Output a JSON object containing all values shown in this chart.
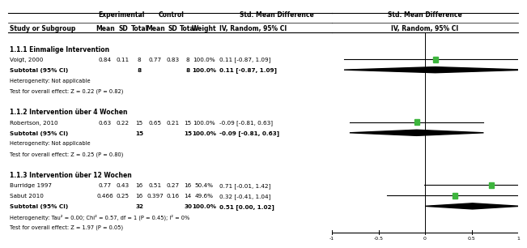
{
  "sections": [
    {
      "heading": "1.1.1 Einmalige Intervention",
      "studies": [
        {
          "name": "Voigt, 2000",
          "exp_mean": "0.84",
          "exp_sd": "0.11",
          "exp_n": "8",
          "ctrl_mean": "0.77",
          "ctrl_sd": "0.83",
          "ctrl_n": "8",
          "weight": "100.0%",
          "smd": 0.11,
          "ci_lo": -0.87,
          "ci_hi": 1.09,
          "label": "0.11 [-0.87, 1.09]"
        }
      ],
      "subtotal": {
        "n_exp": "8",
        "n_ctrl": "8",
        "weight": "100.0%",
        "smd": 0.11,
        "ci_lo": -0.87,
        "ci_hi": 1.09,
        "label": "0.11 [-0.87, 1.09]"
      },
      "het_text": "Heterogeneity: Not applicable",
      "test_text": "Test for overall effect: Z = 0.22 (P = 0.82)"
    },
    {
      "heading": "1.1.2 Intervention über 4 Wochen",
      "studies": [
        {
          "name": "Robertson, 2010",
          "exp_mean": "0.63",
          "exp_sd": "0.22",
          "exp_n": "15",
          "ctrl_mean": "0.65",
          "ctrl_sd": "0.21",
          "ctrl_n": "15",
          "weight": "100.0%",
          "smd": -0.09,
          "ci_lo": -0.81,
          "ci_hi": 0.63,
          "label": "-0.09 [-0.81, 0.63]"
        }
      ],
      "subtotal": {
        "n_exp": "15",
        "n_ctrl": "15",
        "weight": "100.0%",
        "smd": -0.09,
        "ci_lo": -0.81,
        "ci_hi": 0.63,
        "label": "-0.09 [-0.81, 0.63]"
      },
      "het_text": "Heterogeneity: Not applicable",
      "test_text": "Test for overall effect: Z = 0.25 (P = 0.80)"
    },
    {
      "heading": "1.1.3 Intervention über 12 Wochen",
      "studies": [
        {
          "name": "Burridge 1997",
          "exp_mean": "0.77",
          "exp_sd": "0.43",
          "exp_n": "16",
          "ctrl_mean": "0.51",
          "ctrl_sd": "0.27",
          "ctrl_n": "16",
          "weight": "50.4%",
          "smd": 0.71,
          "ci_lo": -0.01,
          "ci_hi": 1.42,
          "label": "0.71 [-0.01, 1.42]"
        },
        {
          "name": "Sabut 2010",
          "exp_mean": "0.466",
          "exp_sd": "0.25",
          "exp_n": "16",
          "ctrl_mean": "0.397",
          "ctrl_sd": "0.16",
          "ctrl_n": "14",
          "weight": "49.6%",
          "smd": 0.32,
          "ci_lo": -0.41,
          "ci_hi": 1.04,
          "label": "0.32 [-0.41, 1.04]"
        }
      ],
      "subtotal": {
        "n_exp": "32",
        "n_ctrl": "30",
        "weight": "100.0%",
        "smd": 0.51,
        "ci_lo": 0.0,
        "ci_hi": 1.02,
        "label": "0.51 [0.00, 1.02]"
      },
      "het_text": "Heterogeneity: Tau² = 0.00; Chi² = 0.57, df = 1 (P = 0.45); I² = 0%",
      "test_text": "Test for overall effect: Z = 1.97 (P = 0.05)"
    }
  ],
  "x_min": -1.0,
  "x_max": 1.0,
  "x_ticks": [
    -1,
    -0.5,
    0,
    0.5,
    1
  ],
  "x_tick_labels": [
    "-1",
    "-0.5",
    "0",
    "0.5",
    "1"
  ],
  "bg_color": "#ffffff",
  "study_color": "#3db53d",
  "line_color": "#000000",
  "text_color": "#000000"
}
